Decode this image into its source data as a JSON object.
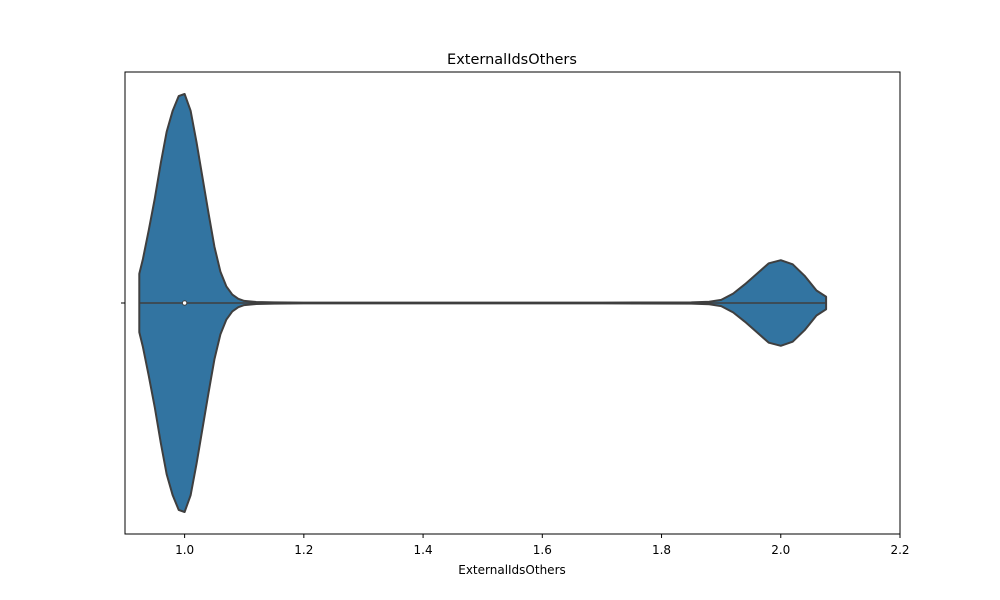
{
  "chart_data": {
    "type": "violin",
    "title": "ExternalIdsOthers",
    "xlabel": "ExternalIdsOthers",
    "ylabel": "",
    "xlim": [
      0.9,
      2.2
    ],
    "x_ticks": [
      1.0,
      1.2,
      1.4,
      1.6,
      1.8,
      2.0,
      2.2
    ],
    "x_tick_labels": [
      "1.0",
      "1.2",
      "1.4",
      "1.6",
      "1.8",
      "2.0",
      "2.2"
    ],
    "median": 1.0,
    "density_profile": {
      "x": [
        0.924,
        0.93,
        0.94,
        0.95,
        0.96,
        0.97,
        0.98,
        0.99,
        1.0,
        1.01,
        1.02,
        1.03,
        1.04,
        1.05,
        1.06,
        1.07,
        1.08,
        1.09,
        1.1,
        1.12,
        1.15,
        1.2,
        1.3,
        1.5,
        1.7,
        1.85,
        1.88,
        1.9,
        1.92,
        1.94,
        1.96,
        1.98,
        2.0,
        2.02,
        2.04,
        2.06,
        2.076
      ],
      "relative_density": [
        0.14,
        0.21,
        0.35,
        0.5,
        0.67,
        0.82,
        0.92,
        0.99,
        1.0,
        0.92,
        0.77,
        0.6,
        0.43,
        0.27,
        0.15,
        0.08,
        0.04,
        0.02,
        0.01,
        0.005,
        0.003,
        0.002,
        0.002,
        0.002,
        0.002,
        0.003,
        0.006,
        0.015,
        0.045,
        0.09,
        0.14,
        0.19,
        0.205,
        0.185,
        0.13,
        0.06,
        0.03
      ]
    },
    "colors": {
      "violin_fill": "#3274a1",
      "violin_edge": "#3f3f3f",
      "median_marker": "#ffffff"
    },
    "grid": false,
    "legend": "none"
  }
}
